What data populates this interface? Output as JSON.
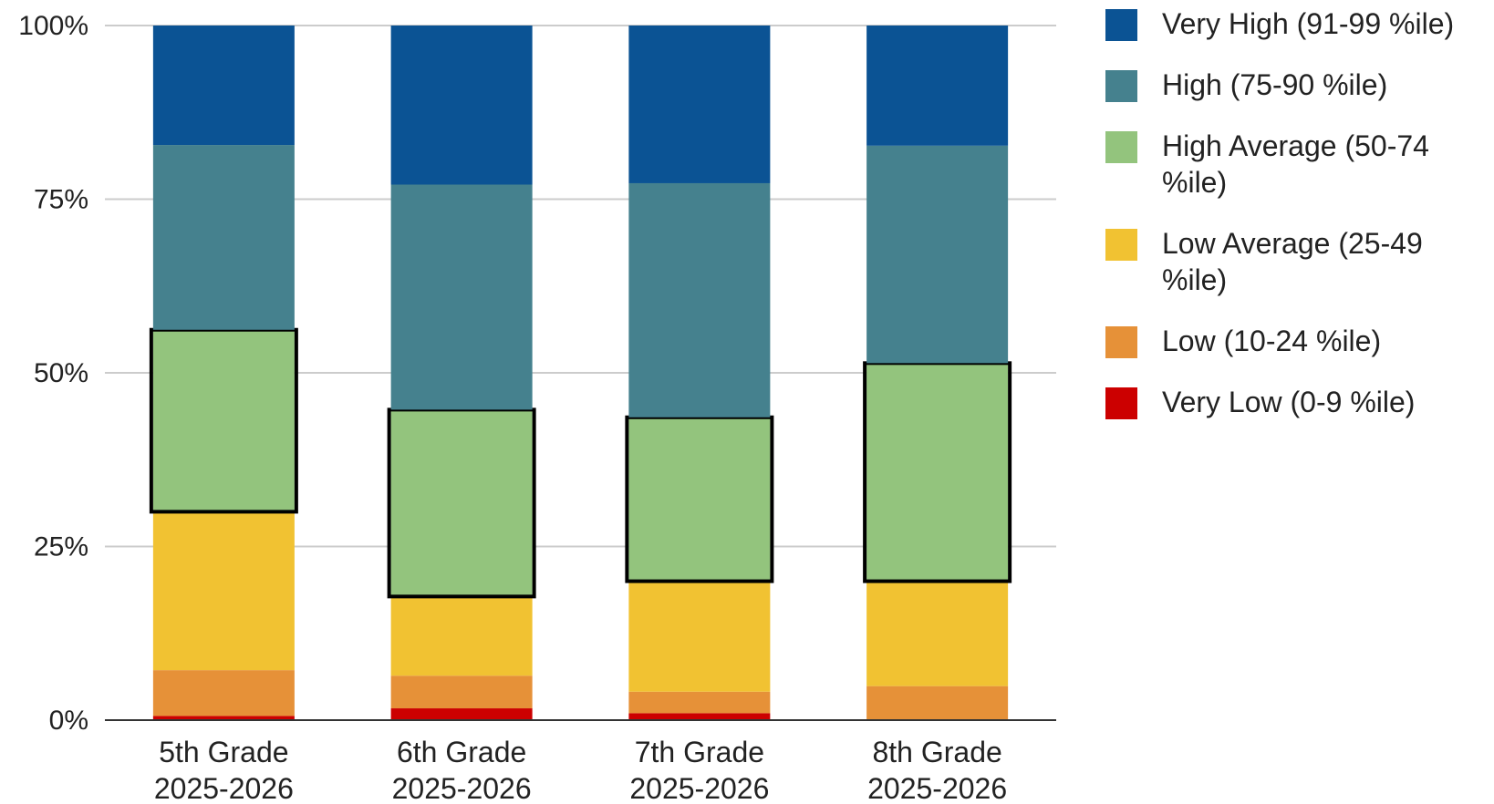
{
  "chart_data": {
    "type": "bar",
    "stacked": "percent",
    "categories": [
      [
        "5th Grade",
        "2025-2026"
      ],
      [
        "6th Grade",
        "2025-2026"
      ],
      [
        "7th Grade",
        "2025-2026"
      ],
      [
        "8th Grade",
        "2025-2026"
      ]
    ],
    "y_ticks": [
      "0%",
      "25%",
      "50%",
      "75%",
      "100%"
    ],
    "ylim": [
      0,
      100
    ],
    "grid": true,
    "legend_position": "right",
    "highlighted_series": "High Average (50-74 %ile)",
    "series": [
      {
        "name": "Very Low (0-9 %ile)",
        "color": "#cc0000",
        "values": [
          0.6,
          1.7,
          1.0,
          0
        ]
      },
      {
        "name": "Low (10-24 %ile)",
        "color": "#e69138",
        "values": [
          6.6,
          4.7,
          3.1,
          4.9
        ]
      },
      {
        "name": "Low Average (25-49 %ile)",
        "color": "#f1c232",
        "values": [
          22.8,
          11.4,
          15.9,
          15.1
        ]
      },
      {
        "name": "High Average (50-74 %ile)",
        "color": "#93c47d",
        "values": [
          26.2,
          26.9,
          23.6,
          31.4
        ]
      },
      {
        "name": "High (75-90 %ile)",
        "color": "#45818e",
        "values": [
          26.6,
          32.4,
          33.7,
          31.3
        ]
      },
      {
        "name": "Very High (91-99 %ile)",
        "color": "#0b5394",
        "values": [
          17.2,
          22.9,
          22.7,
          17.3
        ]
      }
    ]
  },
  "legend": [
    {
      "label": "Very High (91-99 %ile)",
      "color": "#0b5394"
    },
    {
      "label": "High (75-90 %ile)",
      "color": "#45818e"
    },
    {
      "label": "High Average (50-74 %ile)",
      "color": "#93c47d"
    },
    {
      "label": "Low Average (25-49 %ile)",
      "color": "#f1c232"
    },
    {
      "label": "Low (10-24 %ile)",
      "color": "#e69138"
    },
    {
      "label": "Very Low (0-9 %ile)",
      "color": "#cc0000"
    }
  ]
}
